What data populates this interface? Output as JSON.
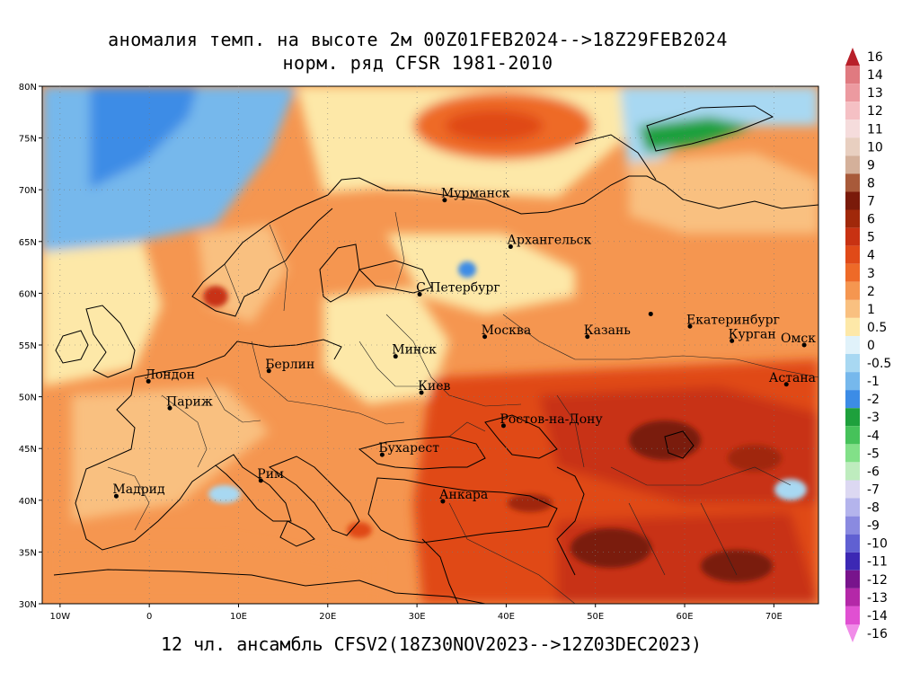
{
  "title": {
    "line1": "аномалия темп. на высоте 2м 00Z01FEB2024-->18Z29FEB2024",
    "line2": "норм. ряд CFSR 1981-2010"
  },
  "footer": "12 чл. ансамбль CFSV2(18Z30NOV2023-->12Z03DEC2023)",
  "map": {
    "lon_range": [
      -12,
      75
    ],
    "lat_range": [
      30,
      80
    ],
    "lat_ticks": [
      {
        "value": 80,
        "label": "80N"
      },
      {
        "value": 75,
        "label": "75N"
      },
      {
        "value": 70,
        "label": "70N"
      },
      {
        "value": 65,
        "label": "65N"
      },
      {
        "value": 60,
        "label": "60N"
      },
      {
        "value": 55,
        "label": "55N"
      },
      {
        "value": 50,
        "label": "50N"
      },
      {
        "value": 45,
        "label": "45N"
      },
      {
        "value": 40,
        "label": "40N"
      },
      {
        "value": 35,
        "label": "35N"
      },
      {
        "value": 30,
        "label": "30N"
      }
    ],
    "lon_ticks": [
      {
        "value": -10,
        "label": "10W"
      },
      {
        "value": 0,
        "label": "0"
      },
      {
        "value": 10,
        "label": "10E"
      },
      {
        "value": 20,
        "label": "20E"
      },
      {
        "value": 30,
        "label": "30E"
      },
      {
        "value": 40,
        "label": "40E"
      },
      {
        "value": 50,
        "label": "50E"
      },
      {
        "value": 60,
        "label": "60E"
      },
      {
        "value": 70,
        "label": "70E"
      }
    ],
    "cities": [
      {
        "name": "Мурманск",
        "lon": 33.1,
        "lat": 69.0
      },
      {
        "name": "Архангельск",
        "lon": 40.5,
        "lat": 64.5
      },
      {
        "name": "С.Петербург",
        "lon": 30.3,
        "lat": 59.9
      },
      {
        "name": "Москва",
        "lon": 37.6,
        "lat": 55.8
      },
      {
        "name": "Казань",
        "lon": 49.1,
        "lat": 55.8
      },
      {
        "name": "Екатеринбург",
        "lon": 60.6,
        "lat": 56.8
      },
      {
        "name": "Курган",
        "lon": 65.3,
        "lat": 55.4
      },
      {
        "name": "Омск",
        "lon": 73.4,
        "lat": 55.0
      },
      {
        "name": "Астана",
        "lon": 71.4,
        "lat": 51.2
      },
      {
        "name": "Минск",
        "lon": 27.6,
        "lat": 53.9
      },
      {
        "name": "Киев",
        "lon": 30.5,
        "lat": 50.4
      },
      {
        "name": "Берлин",
        "lon": 13.4,
        "lat": 52.5
      },
      {
        "name": "Лондон",
        "lon": -0.1,
        "lat": 51.5
      },
      {
        "name": "Париж",
        "lon": 2.3,
        "lat": 48.9
      },
      {
        "name": "Ростов-на-Дону",
        "lon": 39.7,
        "lat": 47.2
      },
      {
        "name": "Бухарест",
        "lon": 26.1,
        "lat": 44.4
      },
      {
        "name": "Рим",
        "lon": 12.5,
        "lat": 41.9
      },
      {
        "name": "Мадрид",
        "lon": -3.7,
        "lat": 40.4
      },
      {
        "name": "Анкара",
        "lon": 32.9,
        "lat": 39.9
      },
      {
        "name": "",
        "lon": 56.2,
        "lat": 58.0
      }
    ]
  },
  "colorbar": {
    "labels": [
      "16",
      "14",
      "13",
      "12",
      "11",
      "10",
      "9",
      "8",
      "7",
      "6",
      "5",
      "4",
      "3",
      "2",
      "1",
      "0.5",
      "0",
      "-0.5",
      "-1",
      "-2",
      "-3",
      "-4",
      "-5",
      "-6",
      "-7",
      "-8",
      "-9",
      "-10",
      "-11",
      "-12",
      "-13",
      "-14",
      "-16"
    ],
    "colors": [
      "#b8202a",
      "#e07a80",
      "#ec9aa0",
      "#f5c0c4",
      "#f5dcdc",
      "#e8cfc0",
      "#d4b09a",
      "#a85a3a",
      "#7a1a0a",
      "#a0280a",
      "#c83212",
      "#e04a18",
      "#ee6a28",
      "#f59650",
      "#f9c080",
      "#fde8a8",
      "#e0f2fa",
      "#a8d8f2",
      "#76b8ec",
      "#3c8ce6",
      "#1ea03c",
      "#46c25a",
      "#82e088",
      "#beecbe",
      "#dcd8f2",
      "#b4b4ec",
      "#8a8ae0",
      "#6060d2",
      "#3c28b4",
      "#78148c",
      "#b428a8",
      "#e050d2",
      "#f08ce8"
    ]
  }
}
